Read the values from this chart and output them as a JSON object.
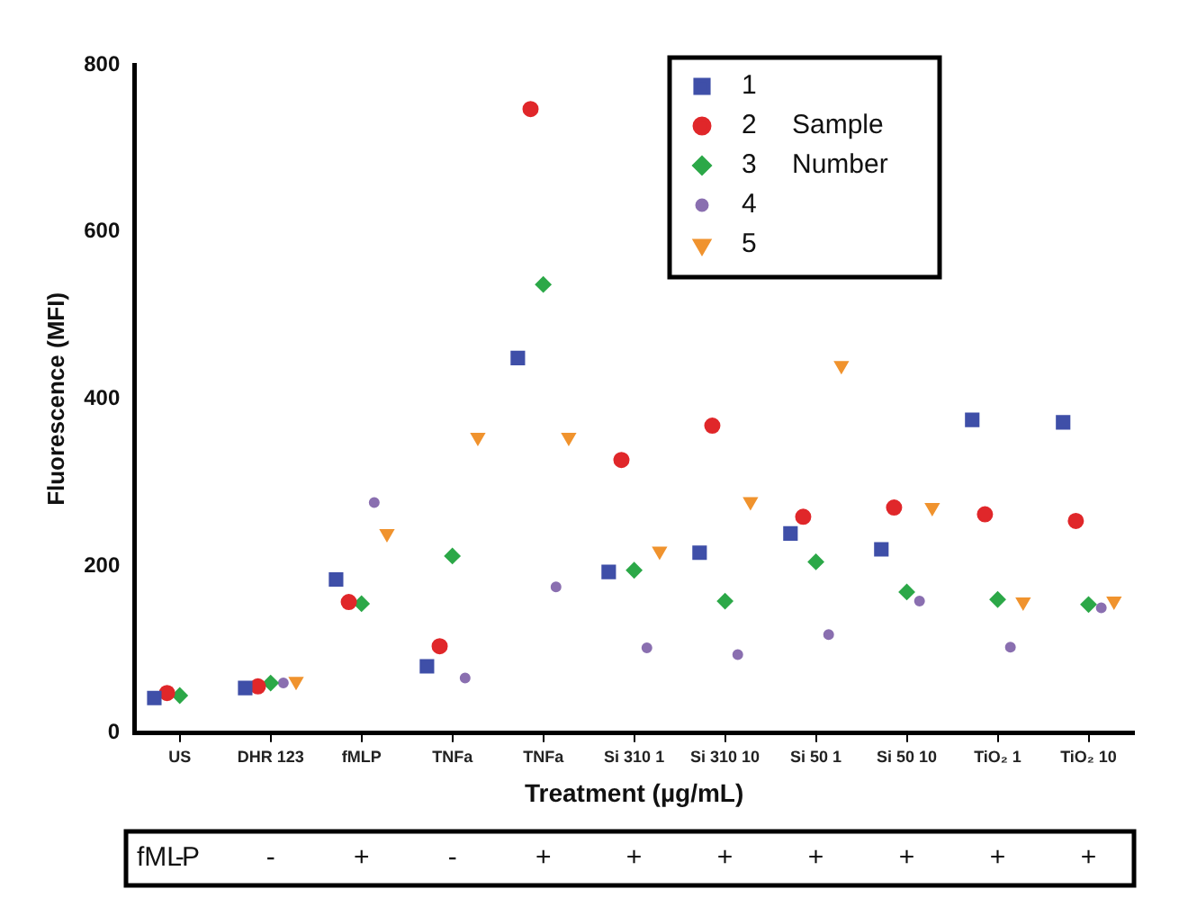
{
  "chart_data": {
    "type": "scatter",
    "xlabel": "Treatment (µg/mL)",
    "ylabel": "Fluorescence (MFI)",
    "legend_title": "Sample Number",
    "legend": "top",
    "grid": false,
    "categories": [
      "US",
      "DHR 123",
      "fMLP",
      "TNFa",
      "TNFa",
      "Si 310 1",
      "Si 310 10",
      "Si 50 1",
      "Si 50 10",
      "TiO₂ 1",
      "TiO₂ 10"
    ],
    "ylim": [
      0,
      800
    ],
    "yticks": [
      0,
      200,
      400,
      600,
      800
    ],
    "series": [
      {
        "name": "1",
        "color": "#3f4fa8",
        "marker": "square",
        "values": [
          42,
          54,
          184,
          80,
          449,
          193,
          216,
          239,
          220,
          375,
          372
        ]
      },
      {
        "name": "2",
        "color": "#e0272a",
        "marker": "circle",
        "values": [
          48,
          56,
          157,
          104,
          747,
          327,
          368,
          259,
          270,
          262,
          254
        ]
      },
      {
        "name": "3",
        "color": "#2ca848",
        "marker": "diamond",
        "values": [
          45,
          60,
          155,
          212,
          537,
          195,
          158,
          205,
          169,
          160,
          154
        ]
      },
      {
        "name": "4",
        "color": "#8a6fb0",
        "marker": "circle",
        "values": [
          null,
          60,
          276,
          66,
          175,
          102,
          94,
          118,
          158,
          103,
          150
        ]
      },
      {
        "name": "5",
        "color": "#f0932e",
        "marker": "triangle",
        "values": [
          null,
          62,
          239,
          354,
          354,
          218,
          277,
          440,
          270,
          157,
          158
        ]
      }
    ],
    "annotations": [
      "fMLP",
      "-",
      "-",
      "+",
      "-",
      "+",
      "+",
      "+",
      "+",
      "+",
      "+",
      "+"
    ]
  }
}
